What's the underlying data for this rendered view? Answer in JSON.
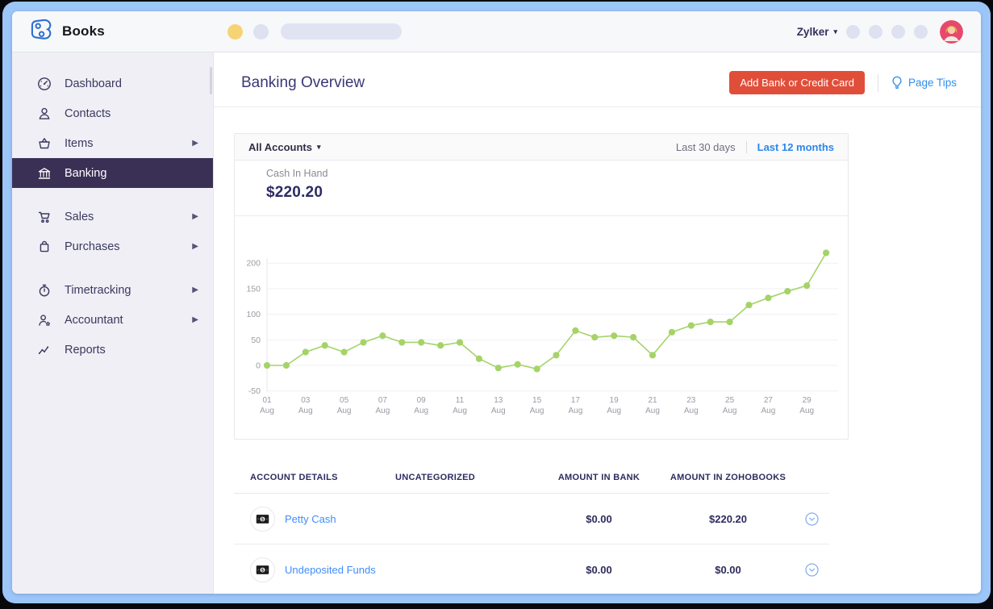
{
  "topbar": {
    "app_name": "Books",
    "org_name": "Zylker"
  },
  "sidebar": {
    "items": [
      {
        "label": "Dashboard",
        "icon": "dashboard-icon",
        "selected": false,
        "has_submenu": false
      },
      {
        "label": "Contacts",
        "icon": "contacts-icon",
        "selected": false,
        "has_submenu": false
      },
      {
        "label": "Items",
        "icon": "items-icon",
        "selected": false,
        "has_submenu": true
      },
      {
        "label": "Banking",
        "icon": "banking-icon",
        "selected": true,
        "has_submenu": false
      },
      {
        "label": "Sales",
        "icon": "sales-icon",
        "selected": false,
        "has_submenu": true
      },
      {
        "label": "Purchases",
        "icon": "purchases-icon",
        "selected": false,
        "has_submenu": true
      },
      {
        "label": "Timetracking",
        "icon": "timetracking-icon",
        "selected": false,
        "has_submenu": true
      },
      {
        "label": "Accountant",
        "icon": "accountant-icon",
        "selected": false,
        "has_submenu": true
      },
      {
        "label": "Reports",
        "icon": "reports-icon",
        "selected": false,
        "has_submenu": false
      }
    ]
  },
  "header": {
    "title": "Banking Overview",
    "add_button_label": "Add Bank or Credit Card",
    "page_tips_label": "Page Tips"
  },
  "panel": {
    "accounts_filter": "All Accounts",
    "range_options": [
      {
        "label": "Last 30 days",
        "active": false
      },
      {
        "label": "Last 12 months",
        "active": true
      }
    ],
    "summary": {
      "label": "Cash In Hand",
      "value": "$220.20"
    }
  },
  "chart_data": {
    "type": "line",
    "title": "",
    "month": "Aug",
    "days": [
      "01",
      "02",
      "03",
      "04",
      "05",
      "06",
      "07",
      "08",
      "09",
      "10",
      "11",
      "12",
      "13",
      "14",
      "15",
      "16",
      "17",
      "18",
      "19",
      "20",
      "21",
      "22",
      "23",
      "24",
      "25",
      "26",
      "27",
      "28",
      "29",
      "30"
    ],
    "values": [
      0,
      0,
      26,
      39,
      26,
      45,
      58,
      45,
      45,
      39,
      45,
      13,
      -5,
      2,
      -7,
      20,
      68,
      55,
      58,
      55,
      20,
      65,
      78,
      85,
      85,
      118,
      132,
      145,
      156,
      220
    ],
    "xtick_days": [
      "01",
      "03",
      "05",
      "07",
      "09",
      "11",
      "13",
      "15",
      "17",
      "19",
      "21",
      "23",
      "25",
      "27",
      "29"
    ],
    "yticks": [
      200,
      150,
      100,
      50,
      0,
      -50
    ],
    "ylim": [
      -50,
      225
    ],
    "grid": true,
    "legend": "none",
    "line_color": "#a5d368"
  },
  "table": {
    "columns": [
      "ACCOUNT DETAILS",
      "UNCATEGORIZED",
      "AMOUNT IN BANK",
      "AMOUNT IN ZOHOBOOKS"
    ],
    "rows": [
      {
        "name": "Petty Cash",
        "uncategorized": "",
        "amount_in_bank": "$0.00",
        "amount_in_zohobooks": "$220.20"
      },
      {
        "name": "Undeposited Funds",
        "uncategorized": "",
        "amount_in_bank": "$0.00",
        "amount_in_zohobooks": "$0.00"
      }
    ]
  },
  "colors": {
    "frame": "#9dc6f8",
    "selected_nav_bg": "#3a3055",
    "add_button_bg": "#e04e3a",
    "link_blue": "#408dfb",
    "active_range_blue": "#2b87ea",
    "chart_line_green": "#a5d368",
    "title_navy": "#3a3875",
    "avatar_bg": "#e8486d"
  }
}
